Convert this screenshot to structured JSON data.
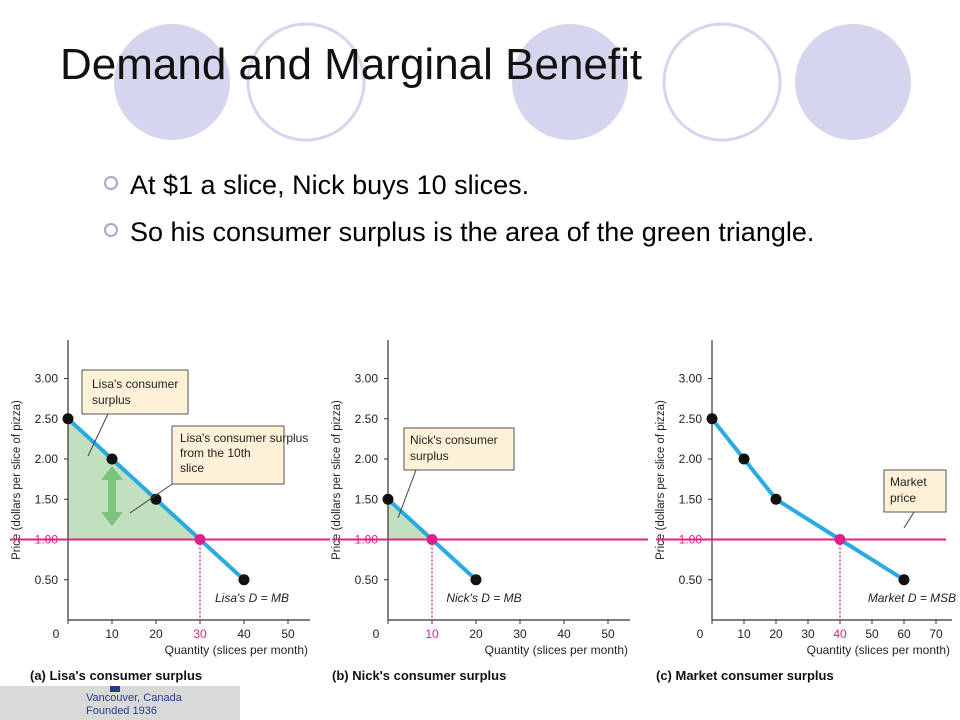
{
  "slide": {
    "title": "Demand and Marginal Benefit",
    "bullets": [
      "At $1 a slice, Nick buys 10 slices.",
      "So his consumer surplus is the area of the green triangle."
    ],
    "footer_logo": {
      "line1": "Vancouver, Canada",
      "line2": "Founded 1936"
    },
    "colors": {
      "curve": "#29abe2",
      "price_line": "#e0208a",
      "surplus": "#c2e0c0",
      "callout": "#fdf2d7",
      "deco_circle": "#d6d5ee"
    }
  },
  "chart_data": [
    {
      "type": "line",
      "caption": "(a) Lisa's consumer surplus",
      "ylabel": "Price (dollars per slice of pizza)",
      "xlabel": "Quantity (slices per month)",
      "x_ticks": [
        "0",
        "10",
        "20",
        "30",
        "40",
        "50"
      ],
      "y_ticks": [
        "0.50",
        "1.00",
        "1.50",
        "2.00",
        "2.50",
        "3.00"
      ],
      "xlim": [
        0,
        55
      ],
      "ylim": [
        0,
        3.5
      ],
      "demand": {
        "x": [
          0,
          10,
          20,
          30,
          40
        ],
        "y": [
          2.5,
          2.0,
          1.5,
          1.0,
          0.5
        ]
      },
      "price": 1.0,
      "quantity": 30,
      "highlight_x_tick": "30",
      "demand_label": "Lisa's D = MB",
      "callouts": [
        "Lisa's consumer surplus",
        "Lisa's consumer surplus from the 10th slice"
      ],
      "price_tick_label": "1.00"
    },
    {
      "type": "line",
      "caption": "(b) Nick's consumer surplus",
      "ylabel": "Price (dollars per slice of pizza)",
      "xlabel": "Quantity (slices per month)",
      "x_ticks": [
        "0",
        "10",
        "20",
        "30",
        "40",
        "50"
      ],
      "y_ticks": [
        "0.50",
        "1.00",
        "1.50",
        "2.00",
        "2.50",
        "3.00"
      ],
      "xlim": [
        0,
        55
      ],
      "ylim": [
        0,
        3.5
      ],
      "demand": {
        "x": [
          0,
          10,
          20
        ],
        "y": [
          1.5,
          1.0,
          0.5
        ]
      },
      "price": 1.0,
      "quantity": 10,
      "highlight_x_tick": "10",
      "demand_label": "Nick's D = MB",
      "callouts": [
        "Nick's consumer surplus"
      ],
      "price_tick_label": "1.00"
    },
    {
      "type": "line",
      "caption": "(c) Market consumer surplus",
      "ylabel": "Price (dollars per slice of pizza)",
      "xlabel": "Quantity (slices per month)",
      "x_ticks": [
        "0",
        "10",
        "20",
        "30",
        "40",
        "50",
        "60",
        "70"
      ],
      "y_ticks": [
        "0.50",
        "1.00",
        "1.50",
        "2.00",
        "2.50",
        "3.00"
      ],
      "xlim": [
        0,
        75
      ],
      "ylim": [
        0,
        3.5
      ],
      "demand": {
        "x": [
          0,
          10,
          20,
          40,
          60
        ],
        "y": [
          2.5,
          2.0,
          1.5,
          1.0,
          0.5
        ]
      },
      "price": 1.0,
      "quantity": 40,
      "highlight_x_tick": "40",
      "demand_label": "Market D = MSB",
      "callouts": [
        "Market price"
      ],
      "price_tick_label": "1.00"
    }
  ]
}
